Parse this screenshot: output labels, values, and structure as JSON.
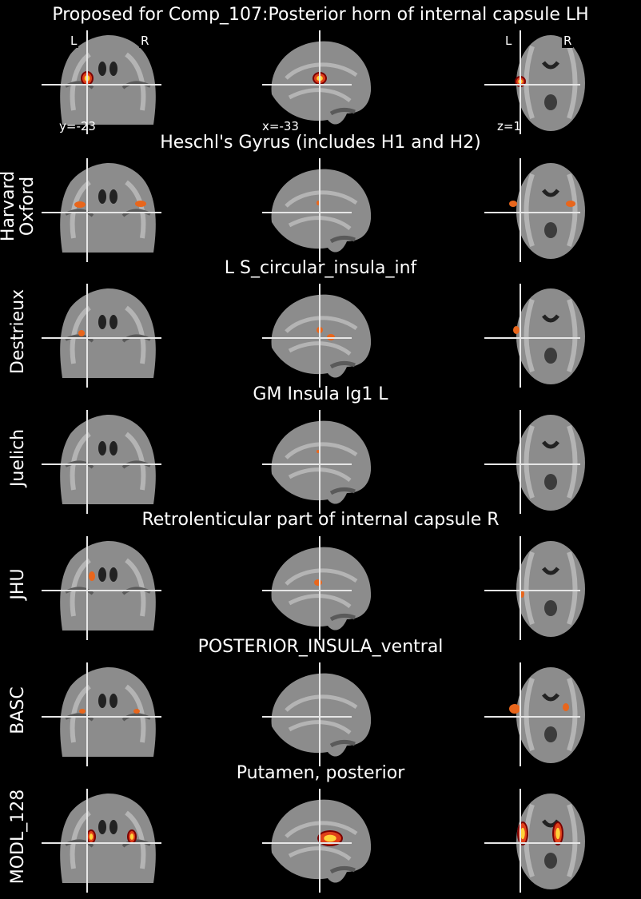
{
  "figure": {
    "orientation_labels": {
      "left": "L",
      "right": "R"
    },
    "coords": {
      "coronal": "y=-23",
      "sagittal": "x=-33",
      "axial": "z=1"
    }
  },
  "rows": [
    {
      "title": "Proposed for Comp_107:Posterior horn of internal capsule LH",
      "atlas": "",
      "overlay": "hot-small"
    },
    {
      "title": "Heschl's Gyrus (includes H1 and H2)",
      "atlas": "Harvard\nOxford",
      "overlay": "heschl"
    },
    {
      "title": "L S_circular_insula_inf",
      "atlas": "Destrieux",
      "overlay": "insula-inf"
    },
    {
      "title": "GM Insula Ig1 L",
      "atlas": "Juelich",
      "overlay": "none"
    },
    {
      "title": "Retrolenticular part of internal capsule R",
      "atlas": "JHU",
      "overlay": "retro"
    },
    {
      "title": "POSTERIOR_INSULA_ventral",
      "atlas": "BASC",
      "overlay": "basc"
    },
    {
      "title": "Putamen, posterior",
      "atlas": "MODL_128",
      "overlay": "putamen"
    }
  ],
  "colors": {
    "background": "#000000",
    "overlay_orange": "#e8661c",
    "overlay_hot": "#ffd23a",
    "crosshair": "#e6e6e6"
  }
}
